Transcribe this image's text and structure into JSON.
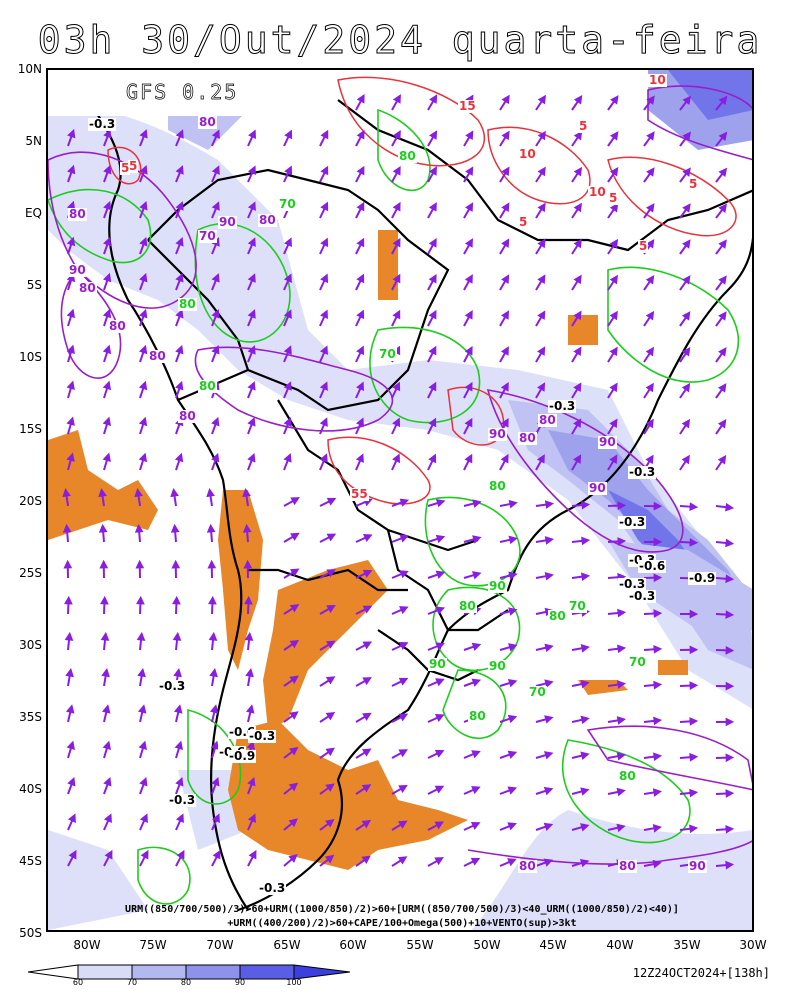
{
  "title": "03h 30/Out/2024 quarta-feira",
  "model": "GFS 0.25",
  "formula_line1": "URM((850/700/500)/3)>60+URM((1000/850)/2)>60+[URM((850/700/500)/3)<40_URM((1000/850)/2)<40)]",
  "formula_line2": "+URM((400/200)/2)>60+CAPE/100+Omega(500)+10+VENTO(sup)>3kt",
  "run_info": "12Z24OCT2024+[138h]",
  "lat_labels": [
    "10N",
    "5N",
    "EQ",
    "5S",
    "10S",
    "15S",
    "20S",
    "25S",
    "30S",
    "35S",
    "40S",
    "45S",
    "50S"
  ],
  "lon_labels": [
    "80W",
    "75W",
    "70W",
    "65W",
    "60W",
    "55W",
    "50W",
    "45W",
    "40W",
    "35W",
    "30W"
  ],
  "colorbar": {
    "ticks": [
      "60",
      "70",
      "80",
      "90",
      "100"
    ],
    "colors": [
      "#ffffff",
      "#d9dcf7",
      "#b4b8f0",
      "#8e92ea",
      "#5a5ee6",
      "#3b3fdf"
    ]
  },
  "contour_labels": {
    "red": [
      "5",
      "10",
      "15",
      "5",
      "10",
      "5",
      "10",
      "5",
      "5",
      "5",
      "5",
      "55"
    ],
    "green": [
      "80",
      "70",
      "80",
      "90",
      "80",
      "70",
      "80",
      "80",
      "90",
      "80",
      "70",
      "90",
      "80",
      "70",
      "80",
      "70"
    ],
    "purple": [
      "80",
      "80",
      "90",
      "80",
      "80",
      "80",
      "80",
      "90",
      "90",
      "80",
      "90",
      "80",
      "70",
      "80",
      "90",
      "90",
      "80",
      "80"
    ],
    "omega": [
      "-0.3",
      "-0.3",
      "-0.3",
      "-0.3",
      "-0.3",
      "-0.6",
      "-0.9",
      "-0.3",
      "-0.3",
      "-0.6",
      "-0.3",
      "-0.6",
      "-0.9",
      "-0.3",
      "-0.3",
      "-0.3"
    ]
  },
  "colors": {
    "wind_vectors": "#8a1ee0",
    "cape": "#e8862a",
    "rh_green": "#1ecc1e",
    "rh_purple": "#9a1ec8",
    "omega_red": "#e8323c"
  }
}
